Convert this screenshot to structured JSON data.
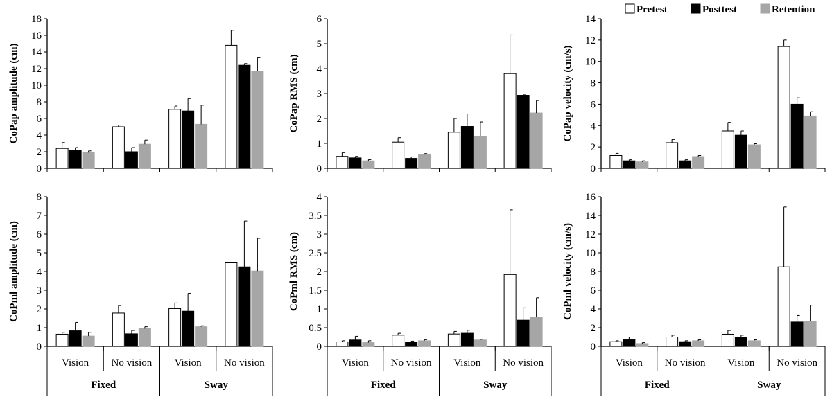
{
  "legend": [
    {
      "name": "Pretest",
      "color": "#ffffff"
    },
    {
      "name": "Posttest",
      "color": "#000000"
    },
    {
      "name": "Retention",
      "color": "#a6a6a6"
    }
  ],
  "conditions": [
    "Vision",
    "No vision",
    "Vision",
    "No vision"
  ],
  "groups": [
    "Fixed",
    "Sway"
  ],
  "chart_data": [
    {
      "type": "bar",
      "title": "",
      "xlabel": "",
      "ylabel": "CoPap amplitude  (cm)",
      "ylim": [
        0,
        18
      ],
      "yticks": [
        0,
        2,
        4,
        6,
        8,
        10,
        12,
        14,
        16,
        18
      ],
      "categories": [
        "Fixed Vision",
        "Fixed No vision",
        "Sway Vision",
        "Sway No vision"
      ],
      "series": [
        {
          "name": "Pretest",
          "values": [
            2.4,
            5.0,
            7.1,
            14.8
          ],
          "errors": [
            0.7,
            0.2,
            0.4,
            1.8
          ]
        },
        {
          "name": "Posttest",
          "values": [
            2.2,
            2.0,
            6.9,
            12.4
          ],
          "errors": [
            0.3,
            0.5,
            1.5,
            0.2
          ]
        },
        {
          "name": "Retention",
          "values": [
            1.9,
            2.9,
            5.3,
            11.7
          ],
          "errors": [
            0.2,
            0.5,
            2.3,
            1.6
          ]
        }
      ]
    },
    {
      "type": "bar",
      "title": "",
      "xlabel": "",
      "ylabel": "CoPap RMS  (cm)",
      "ylim": [
        0,
        6
      ],
      "yticks": [
        0,
        1,
        2,
        3,
        4,
        5,
        6
      ],
      "categories": [
        "Fixed Vision",
        "Fixed No vision",
        "Sway Vision",
        "Sway No vision"
      ],
      "series": [
        {
          "name": "Pretest",
          "values": [
            0.48,
            1.05,
            1.45,
            3.8
          ],
          "errors": [
            0.15,
            0.18,
            0.55,
            1.55
          ]
        },
        {
          "name": "Posttest",
          "values": [
            0.42,
            0.4,
            1.68,
            2.93
          ],
          "errors": [
            0.06,
            0.06,
            0.5,
            0.04
          ]
        },
        {
          "name": "Retention",
          "values": [
            0.3,
            0.55,
            1.28,
            2.22
          ],
          "errors": [
            0.05,
            0.04,
            0.58,
            0.5
          ]
        }
      ]
    },
    {
      "type": "bar",
      "title": "",
      "xlabel": "",
      "ylabel": "CoPap velocity  (cm/s)",
      "ylim": [
        0,
        14
      ],
      "yticks": [
        0,
        2,
        4,
        6,
        8,
        10,
        12,
        14
      ],
      "categories": [
        "Fixed Vision",
        "Fixed No vision",
        "Sway Vision",
        "Sway No vision"
      ],
      "series": [
        {
          "name": "Pretest",
          "values": [
            1.2,
            2.4,
            3.5,
            11.4
          ],
          "errors": [
            0.2,
            0.3,
            0.8,
            0.6
          ]
        },
        {
          "name": "Posttest",
          "values": [
            0.7,
            0.7,
            3.1,
            6.0
          ],
          "errors": [
            0.1,
            0.1,
            0.4,
            0.6
          ]
        },
        {
          "name": "Retention",
          "values": [
            0.6,
            1.1,
            2.2,
            4.9
          ],
          "errors": [
            0.1,
            0.1,
            0.1,
            0.4
          ]
        }
      ]
    },
    {
      "type": "bar",
      "title": "",
      "xlabel": "",
      "ylabel": "CoPml amplitude  (cm)",
      "ylim": [
        0,
        8
      ],
      "yticks": [
        0,
        1,
        2,
        3,
        4,
        5,
        6,
        7,
        8
      ],
      "categories": [
        "Fixed Vision",
        "Fixed No vision",
        "Sway Vision",
        "Sway No vision"
      ],
      "series": [
        {
          "name": "Pretest",
          "values": [
            0.65,
            1.78,
            2.02,
            4.5
          ],
          "errors": [
            0.1,
            0.4,
            0.3,
            0.0
          ]
        },
        {
          "name": "Posttest",
          "values": [
            0.83,
            0.67,
            1.88,
            4.25
          ],
          "errors": [
            0.45,
            0.18,
            0.95,
            2.45
          ]
        },
        {
          "name": "Retention",
          "values": [
            0.55,
            0.95,
            1.05,
            4.03
          ],
          "errors": [
            0.2,
            0.1,
            0.05,
            1.75
          ]
        }
      ]
    },
    {
      "type": "bar",
      "title": "",
      "xlabel": "",
      "ylabel": "CoPml RMS  (cm)",
      "ylim": [
        0,
        4
      ],
      "yticks": [
        0,
        0.5,
        1,
        1.5,
        2,
        2.5,
        3,
        3.5,
        4
      ],
      "categories": [
        "Fixed Vision",
        "Fixed No vision",
        "Sway Vision",
        "Sway No vision"
      ],
      "series": [
        {
          "name": "Pretest",
          "values": [
            0.12,
            0.3,
            0.33,
            1.92
          ],
          "errors": [
            0.03,
            0.05,
            0.07,
            1.73
          ]
        },
        {
          "name": "Posttest",
          "values": [
            0.17,
            0.12,
            0.35,
            0.7
          ],
          "errors": [
            0.1,
            0.02,
            0.08,
            0.33
          ]
        },
        {
          "name": "Retention",
          "values": [
            0.1,
            0.15,
            0.17,
            0.78
          ],
          "errors": [
            0.05,
            0.03,
            0.02,
            0.52
          ]
        }
      ]
    },
    {
      "type": "bar",
      "title": "",
      "xlabel": "",
      "ylabel": "CoPml velocity  (cm/s)",
      "ylim": [
        0,
        16
      ],
      "yticks": [
        0,
        2,
        4,
        6,
        8,
        10,
        12,
        14,
        16
      ],
      "categories": [
        "Fixed Vision",
        "Fixed No vision",
        "Sway Vision",
        "Sway No vision"
      ],
      "series": [
        {
          "name": "Pretest",
          "values": [
            0.5,
            1.0,
            1.3,
            8.5
          ],
          "errors": [
            0.1,
            0.2,
            0.4,
            6.4
          ]
        },
        {
          "name": "Posttest",
          "values": [
            0.7,
            0.5,
            1.0,
            2.6
          ],
          "errors": [
            0.3,
            0.1,
            0.2,
            0.7
          ]
        },
        {
          "name": "Retention",
          "values": [
            0.3,
            0.6,
            0.6,
            2.7
          ],
          "errors": [
            0.1,
            0.1,
            0.1,
            1.7
          ]
        }
      ]
    }
  ]
}
